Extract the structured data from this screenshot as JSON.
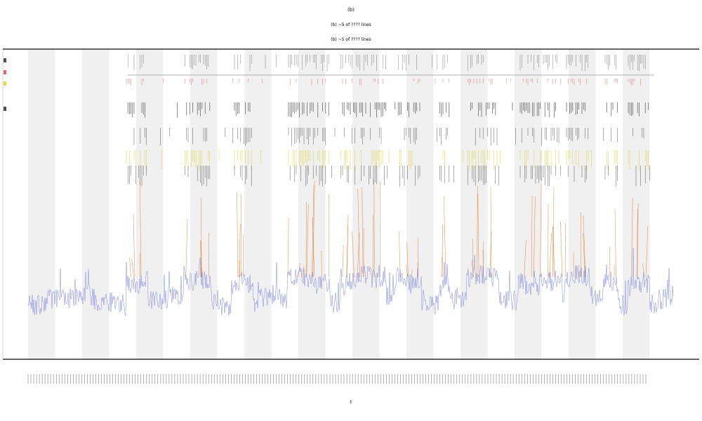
{
  "chart_data": {
    "type": "line",
    "title": "(b)",
    "subtitle_lines": [
      "(b) ~5 of ???? lines",
      "(b) ~5 of ???? lines"
    ],
    "xlabel": "t",
    "ylabel": "",
    "grid": false,
    "legend_position": "top-left",
    "shaded_band_count": 12,
    "series": [
      {
        "name": "",
        "color": "#6b74d8",
        "kind": "line-baseline"
      },
      {
        "name": "",
        "color": "#e0701a",
        "kind": "spikes"
      },
      {
        "name": "",
        "color": "#222222",
        "kind": "event-ticks"
      },
      {
        "name": "",
        "color": "#d8d020",
        "kind": "event-ticks"
      },
      {
        "name": "",
        "color": "#e04040",
        "kind": "event-ticks"
      }
    ],
    "legend_entries": [
      "",
      "",
      "",
      ""
    ],
    "x_tick_count": 220
  },
  "colors": {
    "band": "#f0f0f0",
    "axis": "#333333",
    "blue": "#6b74d8",
    "orange": "#e0701a",
    "black": "#222222",
    "yellow": "#d8d020",
    "red": "#e04040"
  }
}
